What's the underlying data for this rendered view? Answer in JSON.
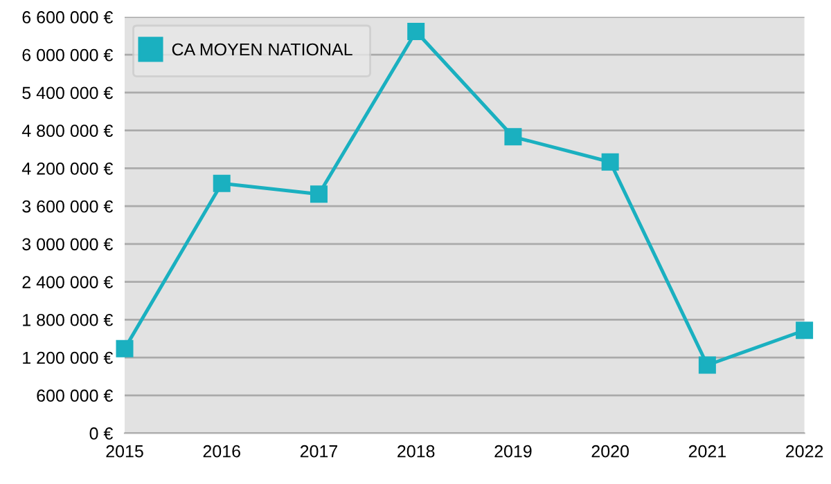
{
  "chart_data": {
    "type": "line",
    "x": [
      2015,
      2016,
      2017,
      2018,
      2019,
      2020,
      2021,
      2022
    ],
    "series": [
      {
        "name": "CA MOYEN NATIONAL",
        "color": "#1ab0c0",
        "values": [
          1340000,
          3960000,
          3790000,
          6370000,
          4700000,
          4300000,
          1080000,
          1630000
        ]
      }
    ],
    "xlim": [
      2015,
      2022
    ],
    "xticks": [
      2015,
      2016,
      2017,
      2018,
      2019,
      2020,
      2021,
      2022
    ],
    "ylim": [
      0,
      6600000
    ],
    "yticks": [
      {
        "value": 0,
        "label": "0 €"
      },
      {
        "value": 600000,
        "label": "600 000 €"
      },
      {
        "value": 1200000,
        "label": "1 200 000 €"
      },
      {
        "value": 1800000,
        "label": "1 800 000 €"
      },
      {
        "value": 2400000,
        "label": "2 400 000 €"
      },
      {
        "value": 3000000,
        "label": "3 000 000 €"
      },
      {
        "value": 3600000,
        "label": "3 600 000 €"
      },
      {
        "value": 4200000,
        "label": "4 200 000 €"
      },
      {
        "value": 4800000,
        "label": "4 800 000 €"
      },
      {
        "value": 5400000,
        "label": "5 400 000 €"
      },
      {
        "value": 6000000,
        "label": "6 000 000 €"
      },
      {
        "value": 6600000,
        "label": "6 600 000 €"
      }
    ],
    "grid": "y",
    "legend": "top left",
    "marker": "square",
    "line_style": "solid"
  }
}
